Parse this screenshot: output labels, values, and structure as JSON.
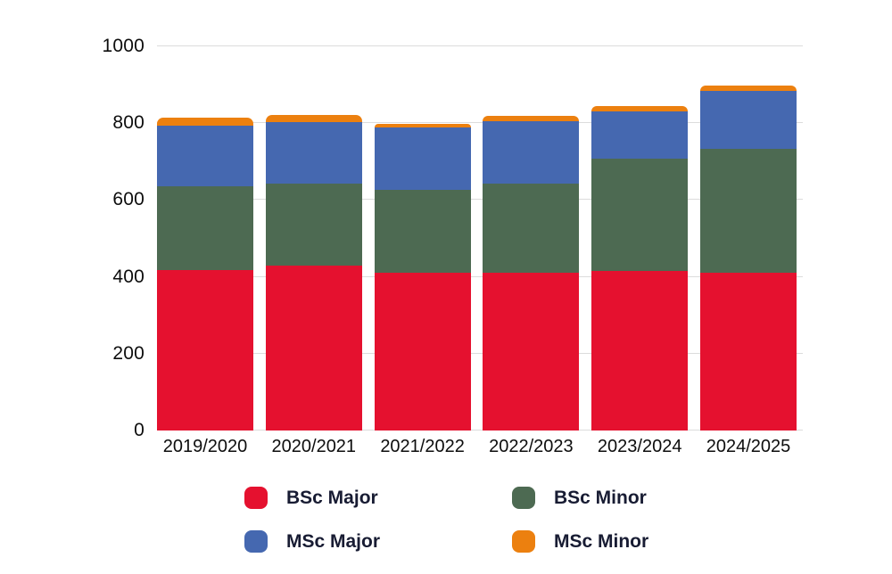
{
  "chart_data": {
    "type": "bar",
    "stacked": true,
    "title": "",
    "xlabel": "",
    "ylabel": "",
    "categories": [
      "2019/2020",
      "2020/2021",
      "2021/2022",
      "2022/2023",
      "2023/2024",
      "2024/2025"
    ],
    "series": [
      {
        "name": "BSc Major",
        "color": "#e5112f",
        "values": [
          417,
          430,
          410,
          410,
          416,
          410
        ]
      },
      {
        "name": "BSc Minor",
        "color": "#4d6a52",
        "values": [
          219,
          212,
          216,
          232,
          292,
          323
        ]
      },
      {
        "name": "MSc Major",
        "color": "#4568b0",
        "values": [
          158,
          160,
          162,
          164,
          122,
          152
        ]
      },
      {
        "name": "MSc Minor",
        "color": "#ec800f",
        "values": [
          21,
          20,
          10,
          12,
          14,
          13
        ]
      }
    ],
    "stack_totals": [
      815,
      822,
      798,
      818,
      844,
      898
    ],
    "ylim": [
      0,
      1000
    ],
    "yticks": [
      0,
      200,
      400,
      600,
      800,
      1000
    ],
    "ytick_labels": [
      "0",
      "200",
      "400",
      "600",
      "800",
      "1000"
    ],
    "grid": "horizontal",
    "legend_position": "bottom",
    "legend": [
      {
        "label": "BSc Major",
        "color": "#e5112f"
      },
      {
        "label": "BSc Minor",
        "color": "#4d6a52"
      },
      {
        "label": "MSc Major",
        "color": "#4568b0"
      },
      {
        "label": "MSc Minor",
        "color": "#ec800f"
      }
    ],
    "colors": {
      "background": "#ffffff",
      "gridline": "#dcdcdc",
      "axis_text": "#0d0d0d",
      "legend_text": "#181c33"
    }
  }
}
